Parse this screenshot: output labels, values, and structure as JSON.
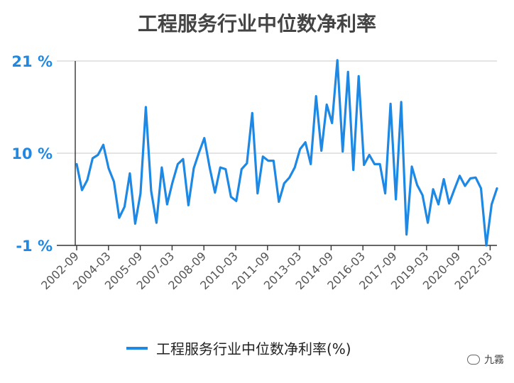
{
  "chart_data": {
    "type": "line",
    "title": "工程服务行业中位数净利率",
    "xlabel": "",
    "ylabel": "",
    "ylim": [
      -1,
      21
    ],
    "yticks": [
      "21 %",
      "10 %",
      "-1 %"
    ],
    "ytick_values": [
      21,
      10,
      -1
    ],
    "xtick_labels": [
      "2002-09",
      "2004-03",
      "2005-09",
      "2007-03",
      "2008-09",
      "2010-03",
      "2011-09",
      "2013-03",
      "2014-09",
      "2016-03",
      "2017-09",
      "2019-03",
      "2020-09",
      "2022-03"
    ],
    "grid": true,
    "legend_position": "bottom",
    "series": [
      {
        "name": "工程服务行业中位数净利率(%)",
        "color": "#1e88e5",
        "values": [
          8.7,
          5.6,
          6.8,
          9.4,
          9.8,
          11.0,
          8.2,
          6.6,
          2.3,
          3.6,
          7.6,
          1.6,
          5.2,
          15.5,
          5.5,
          1.7,
          8.3,
          3.9,
          6.5,
          8.7,
          9.3,
          3.8,
          8.2,
          10.1,
          11.8,
          8.3,
          5.3,
          8.3,
          8.1,
          4.8,
          4.3,
          8.1,
          8.8,
          14.8,
          5.2,
          9.6,
          9.1,
          9.1,
          4.2,
          6.4,
          7.1,
          8.3,
          10.5,
          11.3,
          8.7,
          16.8,
          10.3,
          15.8,
          13.6,
          21.1,
          10.2,
          19.7,
          8.0,
          19.2,
          8.6,
          9.8,
          8.7,
          8.7,
          5.2,
          15.9,
          4.5,
          16.1,
          0.3,
          8.4,
          6.2,
          5.0,
          1.7,
          5.7,
          3.9,
          6.9,
          4.0,
          5.7,
          7.3,
          6.1,
          7.0,
          7.1,
          5.8,
          -1.0,
          3.9,
          5.8
        ],
        "x_start": "2002-09",
        "step": "quarter"
      }
    ]
  },
  "watermark": {
    "text": "九霧"
  }
}
